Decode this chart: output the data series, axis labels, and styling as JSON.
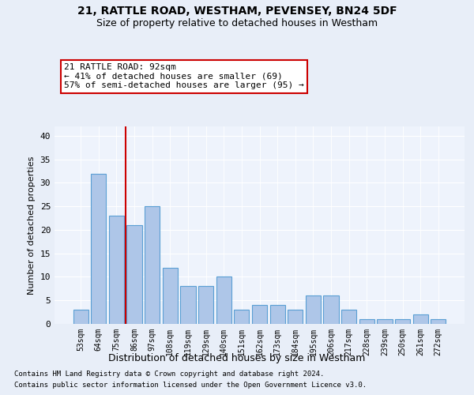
{
  "title1": "21, RATTLE ROAD, WESTHAM, PEVENSEY, BN24 5DF",
  "title2": "Size of property relative to detached houses in Westham",
  "xlabel": "Distribution of detached houses by size in Westham",
  "ylabel": "Number of detached properties",
  "categories": [
    "53sqm",
    "64sqm",
    "75sqm",
    "86sqm",
    "97sqm",
    "108sqm",
    "119sqm",
    "129sqm",
    "140sqm",
    "151sqm",
    "162sqm",
    "173sqm",
    "184sqm",
    "195sqm",
    "206sqm",
    "217sqm",
    "228sqm",
    "239sqm",
    "250sqm",
    "261sqm",
    "272sqm"
  ],
  "values": [
    3,
    32,
    23,
    21,
    25,
    12,
    8,
    8,
    10,
    3,
    4,
    4,
    3,
    6,
    6,
    3,
    1,
    1,
    1,
    2,
    1
  ],
  "bar_color": "#aec6e8",
  "bar_edge_color": "#5a9fd4",
  "vline_color": "#cc0000",
  "vline_pos": 2.5,
  "annotation_title": "21 RATTLE ROAD: 92sqm",
  "annotation_line1": "← 41% of detached houses are smaller (69)",
  "annotation_line2": "57% of semi-detached houses are larger (95) →",
  "annotation_box_color": "#cc0000",
  "ylim": [
    0,
    42
  ],
  "yticks": [
    0,
    5,
    10,
    15,
    20,
    25,
    30,
    35,
    40
  ],
  "footnote1": "Contains HM Land Registry data © Crown copyright and database right 2024.",
  "footnote2": "Contains public sector information licensed under the Open Government Licence v3.0.",
  "bg_color": "#e8eef8",
  "plot_bg_color": "#eef3fc"
}
